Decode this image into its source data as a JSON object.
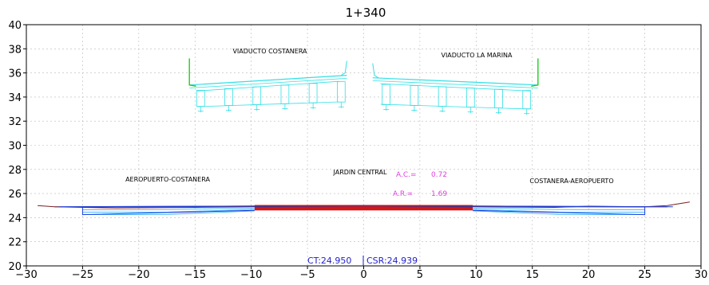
{
  "station": "1+340",
  "x_axis": {
    "min": -30,
    "max": 30,
    "step": 5,
    "ticks": [
      "−30",
      "−25",
      "−20",
      "−15",
      "−10",
      "−5",
      "0",
      "5",
      "10",
      "15",
      "20",
      "25",
      "30"
    ]
  },
  "y_axis": {
    "min": 20,
    "max": 40,
    "step": 2,
    "ticks": [
      "20",
      "22",
      "24",
      "26",
      "28",
      "30",
      "32",
      "34",
      "36",
      "38",
      "40"
    ]
  },
  "labels": {
    "viaduct_left": "VIADUCTO COSTANERA",
    "viaduct_right": "VIADUCTO LA MARINA",
    "road_left": "AEROPUERTO-COSTANERA",
    "road_right": "COSTANERA-AEROPUERTO",
    "median": "JARDIN CENTRAL",
    "ac_label": "A.C.=",
    "ac_value": "0.72",
    "ar_label": "A.R.=",
    "ar_value": "1.69",
    "ct": "CT:24.950",
    "csr": "CSR:24.939"
  },
  "colors": {
    "grid": "#b8b8b8",
    "frame": "#000000",
    "viaduct": "#31e0e6",
    "barrier": "#22cc22",
    "pavement": "#1f3fd8",
    "subbase": "#3ab0ff",
    "terrain": "#7a2020",
    "fill": "#d01818",
    "annotation": "#e040e0",
    "level": "#2222cc"
  },
  "chart_data": {
    "type": "cross-section",
    "title": "1+340",
    "xlim": [
      -30,
      30
    ],
    "ylim": [
      20,
      40
    ],
    "grid": true,
    "terrain": [
      [
        -29,
        25.0
      ],
      [
        -27.5,
        24.9
      ],
      [
        -22,
        24.8
      ],
      [
        -15,
        24.85
      ],
      [
        -10,
        24.9
      ],
      [
        -5,
        24.95
      ],
      [
        0,
        25.0
      ],
      [
        5,
        24.95
      ],
      [
        10,
        24.9
      ],
      [
        17,
        24.85
      ],
      [
        20,
        24.95
      ],
      [
        25,
        24.9
      ],
      [
        27,
        25.0
      ],
      [
        29,
        25.3
      ]
    ],
    "pavement_left": [
      [
        -27,
        24.9
      ],
      [
        -10,
        24.95
      ],
      [
        0,
        25.0
      ]
    ],
    "pavement_right": [
      [
        0,
        25.0
      ],
      [
        10,
        24.95
      ],
      [
        27,
        24.9
      ]
    ],
    "fill_region": {
      "x": [
        -9.7,
        9.7
      ],
      "y": [
        24.6,
        25.05
      ]
    },
    "viaduct_left": {
      "x": [
        -15.5,
        -1.5
      ],
      "top_y": [
        35.0,
        35.8
      ],
      "bottom_y": [
        33.2,
        33.6
      ],
      "piers": [
        -14.5,
        -12.0,
        -9.5,
        -7.0,
        -4.5,
        -2.0
      ]
    },
    "viaduct_right": {
      "x": [
        0.8,
        15.5
      ],
      "top_y": [
        35.6,
        35.0
      ],
      "bottom_y": [
        33.4,
        33.0
      ],
      "piers": [
        2.0,
        4.5,
        7.0,
        9.5,
        12.0,
        14.5
      ]
    },
    "annotations": {
      "ct": 24.95,
      "csr": 24.939,
      "ac": 0.72,
      "ar": 1.69
    }
  }
}
